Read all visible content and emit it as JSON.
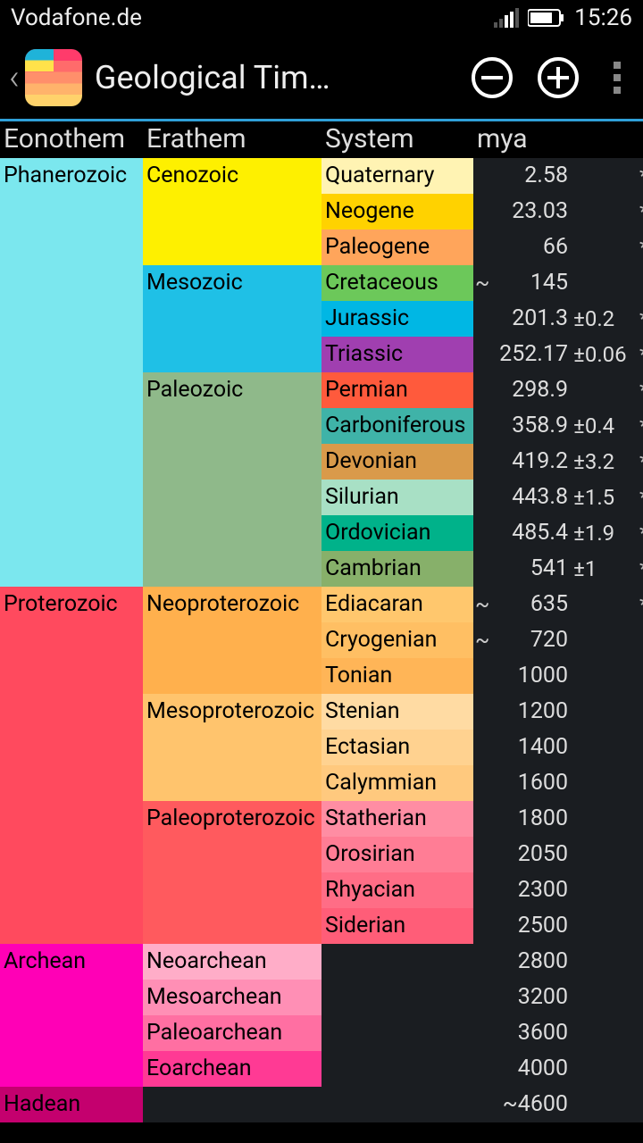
{
  "statusbar": {
    "carrier": "Vodafone.de",
    "time": "15:26"
  },
  "actionbar": {
    "title": "Geological Tim…"
  },
  "headers": {
    "eonothem": "Eonothem",
    "erathem": "Erathem",
    "system": "System",
    "mya": "mya"
  },
  "colors": {
    "phanerozoic": "#7be7ee",
    "cenozoic": "#fef000",
    "mesozoic": "#1fc0e6",
    "paleozoic": "#8fb98a",
    "quaternary": "#fff3b3",
    "neogene": "#ffd200",
    "paleogene": "#ffa55b",
    "cretaceous": "#6cc85a",
    "jurassic": "#00b7e4",
    "triassic": "#a03fb0",
    "permian": "#ff5a3c",
    "carboniferous": "#3fb3a8",
    "devonian": "#d99a4a",
    "silurian": "#a8e0c5",
    "ordovician": "#00b28a",
    "cambrian": "#87b06a",
    "proterozoic": "#ff4a5e",
    "neoproterozoic": "#ffb04d",
    "mesoproterozoic": "#ffc46d",
    "paleoproterozoic": "#ff5a5e",
    "ediacaran": "#ffc76d",
    "cryogenian": "#ffbf63",
    "tonian": "#ffb557",
    "stenian": "#ffdba3",
    "ectasian": "#ffd290",
    "calymmian": "#ffc97e",
    "statherian": "#ff8da3",
    "orosirian": "#ff7d95",
    "rhyacian": "#ff6d86",
    "siderian": "#ff5d78",
    "archean": "#ff00b6",
    "neoarchean": "#ffadc8",
    "mesoarchean": "#ff8fb5",
    "paleoarchean": "#ff6fa2",
    "eoarchean": "#ff3a94",
    "hadean": "#c4006e",
    "bg_mya": "#1a1d21"
  },
  "rows": [
    {
      "eon": "Phanerozoic",
      "eon_show": true,
      "era": "Cenozoic",
      "era_show": true,
      "sys": "Quaternary",
      "approx": "",
      "mya": "2.58",
      "err": "",
      "star": "*",
      "eon_c": "phanerozoic",
      "era_c": "cenozoic",
      "sys_c": "quaternary"
    },
    {
      "eon": "",
      "eon_show": false,
      "era": "",
      "era_show": false,
      "sys": "Neogene",
      "approx": "",
      "mya": "23.03",
      "err": "",
      "star": "*",
      "eon_c": "phanerozoic",
      "era_c": "cenozoic",
      "sys_c": "neogene"
    },
    {
      "eon": "",
      "eon_show": false,
      "era": "",
      "era_show": false,
      "sys": "Paleogene",
      "approx": "",
      "mya": "66",
      "err": "",
      "star": "*",
      "eon_c": "phanerozoic",
      "era_c": "cenozoic",
      "sys_c": "paleogene"
    },
    {
      "eon": "",
      "eon_show": false,
      "era": "Mesozoic",
      "era_show": true,
      "sys": "Cretaceous",
      "approx": "~",
      "mya": "145",
      "err": "",
      "star": "",
      "eon_c": "phanerozoic",
      "era_c": "mesozoic",
      "sys_c": "cretaceous"
    },
    {
      "eon": "",
      "eon_show": false,
      "era": "",
      "era_show": false,
      "sys": "Jurassic",
      "approx": "",
      "mya": "201.3",
      "err": "±0.2",
      "star": "*",
      "eon_c": "phanerozoic",
      "era_c": "mesozoic",
      "sys_c": "jurassic"
    },
    {
      "eon": "",
      "eon_show": false,
      "era": "",
      "era_show": false,
      "sys": "Triassic",
      "approx": "",
      "mya": "252.17",
      "err": "±0.06",
      "star": "*",
      "eon_c": "phanerozoic",
      "era_c": "mesozoic",
      "sys_c": "triassic"
    },
    {
      "eon": "",
      "eon_show": false,
      "era": "Paleozoic",
      "era_show": true,
      "sys": "Permian",
      "approx": "",
      "mya": "298.9",
      "err": "",
      "star": "*",
      "eon_c": "phanerozoic",
      "era_c": "paleozoic",
      "sys_c": "permian"
    },
    {
      "eon": "",
      "eon_show": false,
      "era": "",
      "era_show": false,
      "sys": "Carboniferous",
      "approx": "",
      "mya": "358.9",
      "err": "±0.4",
      "star": "*",
      "eon_c": "phanerozoic",
      "era_c": "paleozoic",
      "sys_c": "carboniferous"
    },
    {
      "eon": "",
      "eon_show": false,
      "era": "",
      "era_show": false,
      "sys": "Devonian",
      "approx": "",
      "mya": "419.2",
      "err": "±3.2",
      "star": "*",
      "eon_c": "phanerozoic",
      "era_c": "paleozoic",
      "sys_c": "devonian"
    },
    {
      "eon": "",
      "eon_show": false,
      "era": "",
      "era_show": false,
      "sys": "Silurian",
      "approx": "",
      "mya": "443.8",
      "err": "±1.5",
      "star": "*",
      "eon_c": "phanerozoic",
      "era_c": "paleozoic",
      "sys_c": "silurian"
    },
    {
      "eon": "",
      "eon_show": false,
      "era": "",
      "era_show": false,
      "sys": "Ordovician",
      "approx": "",
      "mya": "485.4",
      "err": "±1.9",
      "star": "*",
      "eon_c": "phanerozoic",
      "era_c": "paleozoic",
      "sys_c": "ordovician"
    },
    {
      "eon": "",
      "eon_show": false,
      "era": "",
      "era_show": false,
      "sys": "Cambrian",
      "approx": "",
      "mya": "541",
      "err": "±1",
      "star": "*",
      "eon_c": "phanerozoic",
      "era_c": "paleozoic",
      "sys_c": "cambrian"
    },
    {
      "eon": "Proterozoic",
      "eon_show": true,
      "era": "Neoproterozoic",
      "era_show": true,
      "sys": "Ediacaran",
      "approx": "~",
      "mya": "635",
      "err": "",
      "star": "*",
      "eon_c": "proterozoic",
      "era_c": "neoproterozoic",
      "sys_c": "ediacaran"
    },
    {
      "eon": "",
      "eon_show": false,
      "era": "",
      "era_show": false,
      "sys": "Cryogenian",
      "approx": "~",
      "mya": "720",
      "err": "",
      "star": "",
      "eon_c": "proterozoic",
      "era_c": "neoproterozoic",
      "sys_c": "cryogenian"
    },
    {
      "eon": "",
      "eon_show": false,
      "era": "",
      "era_show": false,
      "sys": "Tonian",
      "approx": "",
      "mya": "1000",
      "err": "",
      "star": "",
      "eon_c": "proterozoic",
      "era_c": "neoproterozoic",
      "sys_c": "tonian"
    },
    {
      "eon": "",
      "eon_show": false,
      "era": "Mesoproterozoic",
      "era_show": true,
      "sys": "Stenian",
      "approx": "",
      "mya": "1200",
      "err": "",
      "star": "",
      "eon_c": "proterozoic",
      "era_c": "mesoproterozoic",
      "sys_c": "stenian"
    },
    {
      "eon": "",
      "eon_show": false,
      "era": "",
      "era_show": false,
      "sys": "Ectasian",
      "approx": "",
      "mya": "1400",
      "err": "",
      "star": "",
      "eon_c": "proterozoic",
      "era_c": "mesoproterozoic",
      "sys_c": "ectasian"
    },
    {
      "eon": "",
      "eon_show": false,
      "era": "",
      "era_show": false,
      "sys": "Calymmian",
      "approx": "",
      "mya": "1600",
      "err": "",
      "star": "",
      "eon_c": "proterozoic",
      "era_c": "mesoproterozoic",
      "sys_c": "calymmian"
    },
    {
      "eon": "",
      "eon_show": false,
      "era": "Paleoproterozoic",
      "era_show": true,
      "sys": "Statherian",
      "approx": "",
      "mya": "1800",
      "err": "",
      "star": "",
      "eon_c": "proterozoic",
      "era_c": "paleoproterozoic",
      "sys_c": "statherian"
    },
    {
      "eon": "",
      "eon_show": false,
      "era": "",
      "era_show": false,
      "sys": "Orosirian",
      "approx": "",
      "mya": "2050",
      "err": "",
      "star": "",
      "eon_c": "proterozoic",
      "era_c": "paleoproterozoic",
      "sys_c": "orosirian"
    },
    {
      "eon": "",
      "eon_show": false,
      "era": "",
      "era_show": false,
      "sys": "Rhyacian",
      "approx": "",
      "mya": "2300",
      "err": "",
      "star": "",
      "eon_c": "proterozoic",
      "era_c": "paleoproterozoic",
      "sys_c": "rhyacian"
    },
    {
      "eon": "",
      "eon_show": false,
      "era": "",
      "era_show": false,
      "sys": "Siderian",
      "approx": "",
      "mya": "2500",
      "err": "",
      "star": "",
      "eon_c": "proterozoic",
      "era_c": "paleoproterozoic",
      "sys_c": "siderian"
    },
    {
      "eon": "Archean",
      "eon_show": true,
      "era": "Neoarchean",
      "era_show": true,
      "sys": "",
      "approx": "",
      "mya": "2800",
      "err": "",
      "star": "",
      "eon_c": "archean",
      "era_c": "neoarchean",
      "sys_c": ""
    },
    {
      "eon": "",
      "eon_show": false,
      "era": "Mesoarchean",
      "era_show": true,
      "sys": "",
      "approx": "",
      "mya": "3200",
      "err": "",
      "star": "",
      "eon_c": "archean",
      "era_c": "mesoarchean",
      "sys_c": ""
    },
    {
      "eon": "",
      "eon_show": false,
      "era": "Paleoarchean",
      "era_show": true,
      "sys": "",
      "approx": "",
      "mya": "3600",
      "err": "",
      "star": "",
      "eon_c": "archean",
      "era_c": "paleoarchean",
      "sys_c": ""
    },
    {
      "eon": "",
      "eon_show": false,
      "era": "Eoarchean",
      "era_show": true,
      "sys": "",
      "approx": "",
      "mya": "4000",
      "err": "",
      "star": "",
      "eon_c": "archean",
      "era_c": "eoarchean",
      "sys_c": ""
    },
    {
      "eon": "Hadean",
      "eon_show": true,
      "era": "",
      "era_show": false,
      "sys": "",
      "approx": "",
      "mya": "~4600",
      "err": "",
      "star": "",
      "eon_c": "hadean",
      "era_c": "",
      "sys_c": ""
    }
  ]
}
